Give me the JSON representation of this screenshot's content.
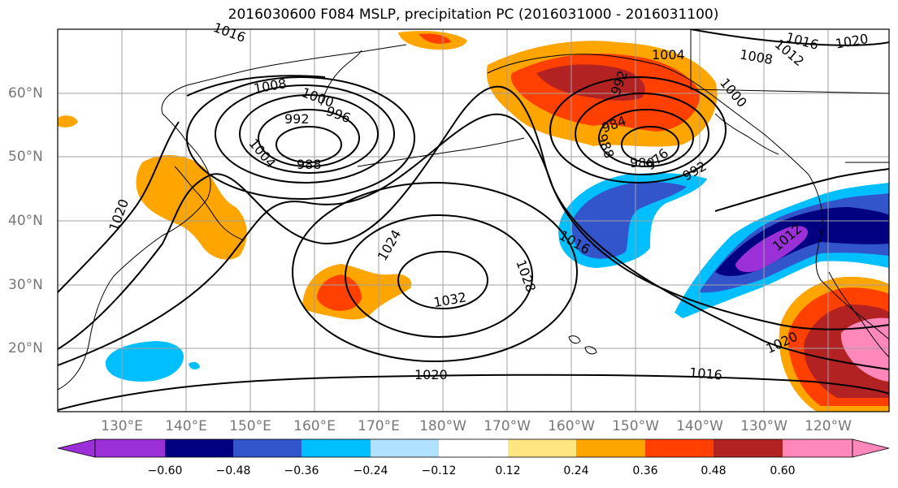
{
  "title": "2016030600 F084 MSLP, precipitation PC (2016031000 - 2016031100)",
  "lat_labels": [
    "60°N",
    "50°N",
    "40°N",
    "30°N",
    "20°N"
  ],
  "lon_labels": [
    "130°E",
    "140°E",
    "150°E",
    "160°E",
    "170°E",
    "180°W",
    "170°W",
    "160°W",
    "150°W",
    "140°W",
    "130°W",
    "120°W"
  ],
  "isobar_labels": [
    "1016",
    "1008",
    "1000",
    "996",
    "992",
    "988",
    "1004",
    "1024",
    "1028",
    "1032",
    "1020",
    "1004",
    "1008",
    "1012",
    "1016",
    "1020",
    "992",
    "988",
    "984",
    "980",
    "976",
    "1000",
    "992",
    "1016",
    "1012",
    "1020",
    "1016",
    "1020"
  ],
  "colorbar": {
    "ticks": [
      "−0.60",
      "−0.48",
      "−0.36",
      "−0.24",
      "−0.12",
      "0.12",
      "0.24",
      "0.36",
      "0.48",
      "0.60"
    ],
    "colors": [
      "#9b30d9",
      "#000080",
      "#3355cc",
      "#00bfff",
      "#b0e2ff",
      "#ffffff",
      "#ffe680",
      "#ffa500",
      "#ff4000",
      "#b22222",
      "#ff88bb"
    ]
  }
}
